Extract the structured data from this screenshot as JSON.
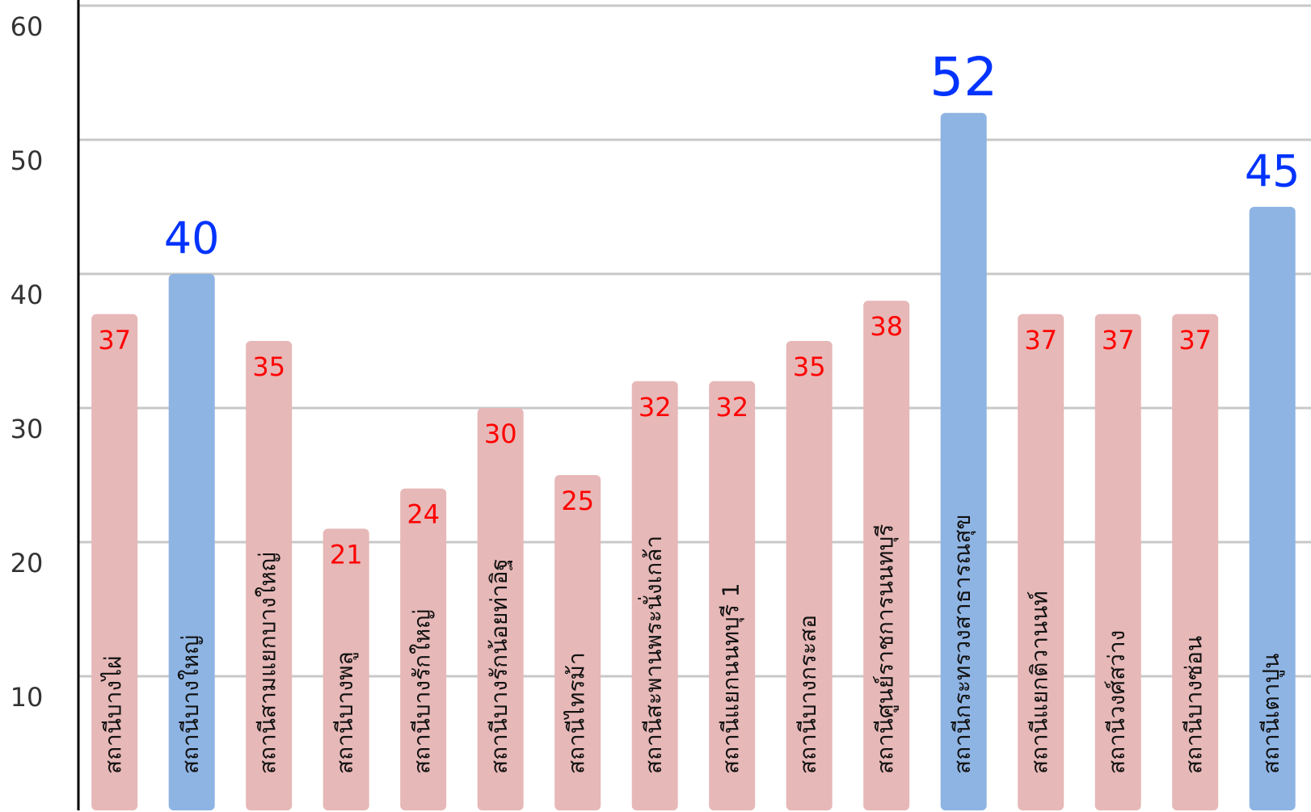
{
  "chart_data": {
    "type": "bar",
    "categories": [
      "สถานีบางไผ่",
      "สถานีบางใหญ่",
      "สถานีสามแยกบางใหญ่",
      "สถานีบางพลู",
      "สถานีบางรักใหญ่",
      "สถานีบางรักน้อยท่าอิฐ",
      "สถานีไทรม้า",
      "สถานีสะพานพระนั่งเกล้า",
      "สถานีแยกนนทบุรี 1",
      "สถานีบางกระสอ",
      "สถานีศูนย์ราชการนนทบุรี",
      "สถานีกระทรวงสาธารณสุข",
      "สถานีแยกติวานนท์",
      "สถานีวงศ์สว่าง",
      "สถานีบางซ่อน",
      "สถานีเตาปูน"
    ],
    "values": [
      37,
      40,
      35,
      21,
      24,
      30,
      25,
      32,
      32,
      35,
      38,
      52,
      37,
      37,
      37,
      45
    ],
    "colors": [
      "#e6b8b7",
      "#8eb4e3",
      "#e6b8b7",
      "#e6b8b7",
      "#e6b8b7",
      "#e6b8b7",
      "#e6b8b7",
      "#e6b8b7",
      "#e6b8b7",
      "#e6b8b7",
      "#e6b8b7",
      "#8eb4e3",
      "#e6b8b7",
      "#e6b8b7",
      "#e6b8b7",
      "#8eb4e3"
    ],
    "value_label_colors": [
      "#ff0000",
      "#0033ff",
      "#ff0000",
      "#ff0000",
      "#ff0000",
      "#ff0000",
      "#ff0000",
      "#ff0000",
      "#ff0000",
      "#ff0000",
      "#ff0000",
      "#0033ff",
      "#ff0000",
      "#ff0000",
      "#ff0000",
      "#0033ff"
    ],
    "ylim": [
      0,
      60
    ],
    "yticks": [
      10,
      20,
      30,
      40,
      50,
      60
    ],
    "grid": true
  }
}
